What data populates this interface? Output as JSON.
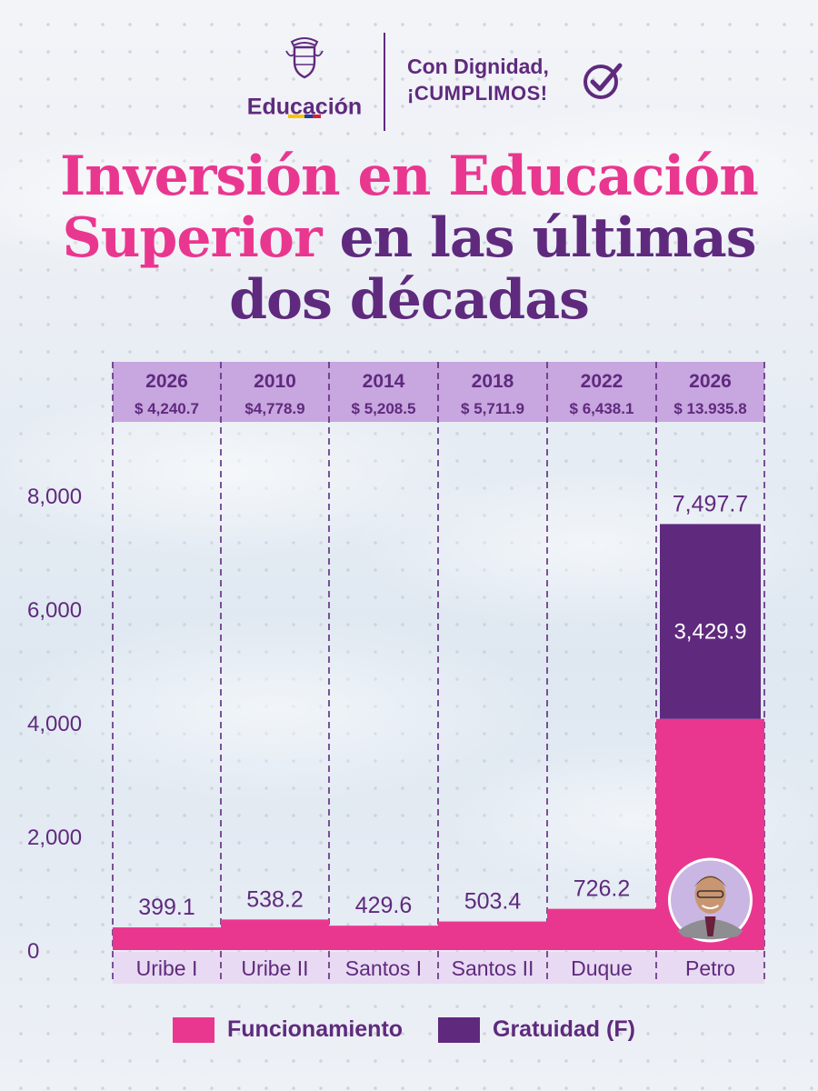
{
  "header": {
    "logo_label": "Educación",
    "motto_line1": "Con Dignidad,",
    "motto_line2": "¡CUMPLIMOS!"
  },
  "title": {
    "part1": "Inversión en Educación",
    "part2_pink": "Superior",
    "part2_rest": " en las últimas",
    "part3": "dos décadas"
  },
  "colors": {
    "purple": "#5f2a7e",
    "pink": "#e9378f",
    "header_row": "#c8a6df",
    "label_row": "#e8daf2"
  },
  "chart_data": {
    "type": "bar",
    "stacked": true,
    "categories": [
      "Uribe I",
      "Uribe II",
      "Santos I",
      "Santos II",
      "Duque",
      "Petro"
    ],
    "header_years": [
      "2026",
      "2010",
      "2014",
      "2018",
      "2022",
      "2026"
    ],
    "header_totals": [
      "$ 4,240.7",
      "$4,778.9",
      "$ 5,208.5",
      "$ 5,711.9",
      "$ 6,438.1",
      "$ 13.935.8"
    ],
    "y_ticks": [
      "0",
      "2,000",
      "4,000",
      "6,000",
      "8,000"
    ],
    "ylim": [
      0,
      8000
    ],
    "series": [
      {
        "name": "Funcionamiento",
        "values": [
          399.1,
          538.2,
          429.6,
          503.4,
          726.2,
          4067.8
        ]
      },
      {
        "name": "Gratuidad (F)",
        "values": [
          0,
          0,
          0,
          0,
          0,
          3429.9
        ]
      }
    ],
    "data_labels": [
      "399.1",
      "538.2",
      "429.6",
      "503.4",
      "726.2",
      "7,497.7"
    ],
    "inner_label": "3,429.9",
    "photo_icon": "person-portrait",
    "legend_position": "bottom"
  },
  "legend": {
    "item1": "Funcionamiento",
    "item2": "Gratuidad (F)"
  }
}
